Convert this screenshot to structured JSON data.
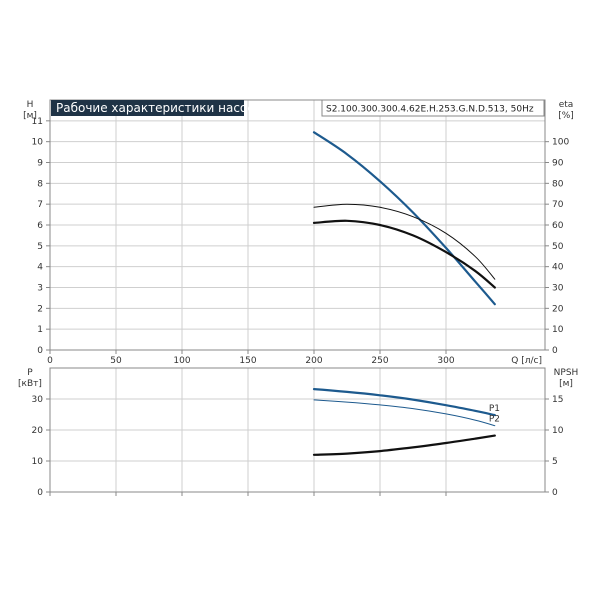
{
  "colors": {
    "title_bg": "#1f3346",
    "title_text": "#ffffff",
    "grid": "#cfcfcf",
    "frame": "#888888",
    "tick_text": "#333333",
    "series_blue": "#1d5a8e",
    "series_black": "#111111"
  },
  "header": {
    "title": "Рабочие характеристики насоса",
    "model": "S2.100.300.300.4.62E.H.253.G.N.D.513, 50Hz"
  },
  "chart_data": [
    {
      "type": "line",
      "name_visible": "",
      "x_label": "Q [л/с]",
      "xlim": [
        0,
        375
      ],
      "x_ticks": [
        0,
        50,
        100,
        150,
        200,
        250,
        300
      ],
      "left_axis": {
        "label_lines": [
          "H",
          "[м]"
        ],
        "lim": [
          0,
          12
        ],
        "ticks": [
          0,
          1,
          2,
          3,
          4,
          5,
          6,
          7,
          8,
          9,
          10,
          11
        ]
      },
      "right_axis": {
        "label_lines": [
          "eta",
          "[%]"
        ],
        "lim": [
          0,
          120
        ],
        "ticks": [
          0,
          10,
          20,
          30,
          40,
          50,
          60,
          70,
          80,
          90,
          100
        ]
      },
      "grid": true,
      "series": [
        {
          "axis": "left",
          "color": "series_blue",
          "width": 2.2,
          "points": [
            [
              200,
              10.45
            ],
            [
              225,
              9.4
            ],
            [
              250,
              8.1
            ],
            [
              275,
              6.6
            ],
            [
              300,
              4.9
            ],
            [
              322,
              3.3
            ],
            [
              337,
              2.2
            ]
          ]
        },
        {
          "axis": "left",
          "color": "series_black",
          "width": 2.2,
          "points": [
            [
              200,
              6.1
            ],
            [
              225,
              6.2
            ],
            [
              250,
              6.0
            ],
            [
              275,
              5.5
            ],
            [
              300,
              4.7
            ],
            [
              322,
              3.8
            ],
            [
              337,
              3.0
            ]
          ]
        },
        {
          "axis": "right",
          "color": "series_black",
          "width": 1,
          "points": [
            [
              200,
              68.5
            ],
            [
              225,
              70.0
            ],
            [
              250,
              68.5
            ],
            [
              275,
              64.0
            ],
            [
              300,
              56.0
            ],
            [
              322,
              45.0
            ],
            [
              337,
              34.0
            ]
          ]
        }
      ]
    },
    {
      "type": "line",
      "x_label": "",
      "xlim": [
        0,
        375
      ],
      "left_axis": {
        "label_lines": [
          "P",
          "[кВт]"
        ],
        "lim": [
          0,
          40
        ],
        "ticks": [
          0,
          10,
          20,
          30
        ]
      },
      "right_axis": {
        "label_lines": [
          "NPSH",
          "[м]"
        ],
        "lim": [
          0,
          20
        ],
        "ticks": [
          0,
          5,
          10,
          15
        ]
      },
      "grid": true,
      "series": [
        {
          "name": "P1",
          "axis": "left",
          "color": "series_blue",
          "width": 2.2,
          "points": [
            [
              200,
              33.2
            ],
            [
              225,
              32.3
            ],
            [
              250,
              31.2
            ],
            [
              275,
              29.8
            ],
            [
              300,
              28.0
            ],
            [
              322,
              26.2
            ],
            [
              337,
              24.8
            ]
          ]
        },
        {
          "name": "P2",
          "axis": "left",
          "color": "series_blue",
          "width": 1,
          "points": [
            [
              200,
              29.7
            ],
            [
              225,
              29.0
            ],
            [
              250,
              28.1
            ],
            [
              275,
              26.9
            ],
            [
              300,
              25.2
            ],
            [
              322,
              23.2
            ],
            [
              337,
              21.4
            ]
          ]
        },
        {
          "axis": "right",
          "color": "series_black",
          "width": 2.2,
          "points": [
            [
              200,
              6.0
            ],
            [
              225,
              6.2
            ],
            [
              250,
              6.6
            ],
            [
              275,
              7.2
            ],
            [
              300,
              7.9
            ],
            [
              322,
              8.6
            ],
            [
              337,
              9.1
            ]
          ]
        }
      ]
    }
  ]
}
